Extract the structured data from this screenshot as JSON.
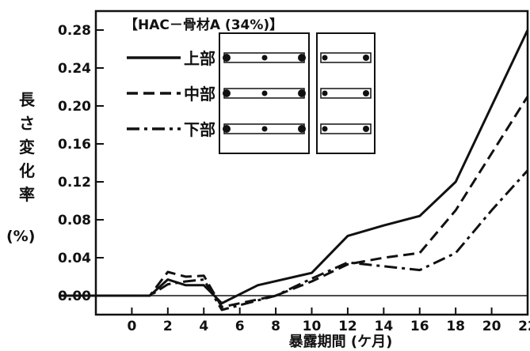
{
  "chart_data": {
    "type": "line",
    "title": "【HAC－骨材A (34%)】",
    "xlabel": "暴露期間 (ケ月)",
    "ylabel_chars": [
      "長",
      "さ",
      "変",
      "化",
      "率"
    ],
    "ylabel_unit": "(%)",
    "xlim": [
      -2,
      22
    ],
    "ylim": [
      -0.02,
      0.3
    ],
    "x_ticks": [
      0,
      2,
      4,
      6,
      8,
      10,
      12,
      14,
      16,
      18,
      20,
      22
    ],
    "y_ticks": [
      0.0,
      0.04,
      0.08,
      0.12,
      0.16,
      0.2,
      0.24,
      0.28
    ],
    "y_tick_labels": [
      "0.00",
      "0.04",
      "0.08",
      "0.12",
      "0.16",
      "0.20",
      "0.24",
      "0.28"
    ],
    "legend_position": "top-left",
    "series": [
      {
        "name": "上部",
        "style": "solid",
        "points": [
          [
            -4,
            0.0
          ],
          [
            1,
            0.0
          ],
          [
            2,
            0.017
          ],
          [
            3,
            0.011
          ],
          [
            4,
            0.011
          ],
          [
            5,
            -0.008
          ],
          [
            7,
            0.011
          ],
          [
            10,
            0.024
          ],
          [
            12,
            0.063
          ],
          [
            14,
            0.074
          ],
          [
            16,
            0.084
          ],
          [
            18,
            0.12
          ],
          [
            20,
            0.2
          ],
          [
            22,
            0.28
          ]
        ]
      },
      {
        "name": "中部",
        "style": "dashed",
        "points": [
          [
            -4,
            0.0
          ],
          [
            1,
            0.0
          ],
          [
            2,
            0.025
          ],
          [
            3,
            0.02
          ],
          [
            4,
            0.021
          ],
          [
            5,
            -0.012
          ],
          [
            8,
            0.0
          ],
          [
            10,
            0.015
          ],
          [
            12,
            0.033
          ],
          [
            14,
            0.04
          ],
          [
            16,
            0.045
          ],
          [
            18,
            0.09
          ],
          [
            20,
            0.15
          ],
          [
            22,
            0.21
          ]
        ]
      },
      {
        "name": "下部",
        "style": "dashdot",
        "points": [
          [
            -4,
            0.0
          ],
          [
            1,
            0.0
          ],
          [
            2,
            0.012
          ],
          [
            3,
            0.015
          ],
          [
            4,
            0.017
          ],
          [
            5,
            -0.015
          ],
          [
            8,
            0.0
          ],
          [
            10,
            0.018
          ],
          [
            12,
            0.035
          ],
          [
            14,
            0.031
          ],
          [
            16,
            0.027
          ],
          [
            18,
            0.045
          ],
          [
            20,
            0.09
          ],
          [
            22,
            0.132
          ]
        ]
      }
    ]
  }
}
